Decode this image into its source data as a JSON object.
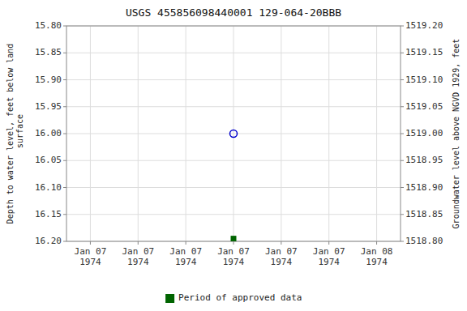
{
  "chart_data": {
    "type": "scatter",
    "title": "USGS 455856098440001 129-064-20BBB",
    "y_label": "Depth to water level, feet below land\n surface",
    "y2_label": "Groundwater level above NGVD 1929, feet",
    "categories": [
      "Jan 07\n1974",
      "Jan 07\n1974",
      "Jan 07\n1974",
      "Jan 07\n1974",
      "Jan 07\n1974",
      "Jan 07\n1974",
      "Jan 08\n1974"
    ],
    "series": [
      {
        "color": "#0000cc",
        "marker": "open-circle",
        "values": [
          null,
          null,
          null,
          16.0,
          null,
          null,
          null
        ]
      },
      {
        "name": "Period of approved data",
        "color": "#006400",
        "marker": "square",
        "values": [
          null,
          null,
          null,
          16.195,
          null,
          null,
          null
        ]
      }
    ],
    "ylim": [
      16.2,
      15.8
    ],
    "yticks": [
      {
        "value": 15.8,
        "label": "15.80"
      },
      {
        "value": 15.85,
        "label": "15.85"
      },
      {
        "value": 15.9,
        "label": "15.90"
      },
      {
        "value": 15.95,
        "label": "15.95"
      },
      {
        "value": 16.0,
        "label": "16.00"
      },
      {
        "value": 16.05,
        "label": "16.05"
      },
      {
        "value": 16.1,
        "label": "16.10"
      },
      {
        "value": 16.15,
        "label": "16.15"
      },
      {
        "value": 16.2,
        "label": "16.20"
      }
    ],
    "y2lim": [
      1518.8,
      1519.2
    ],
    "y2ticks": [
      {
        "value": 1518.8,
        "label": "1518.80"
      },
      {
        "value": 1518.85,
        "label": "1518.85"
      },
      {
        "value": 1518.9,
        "label": "1518.90"
      },
      {
        "value": 1518.95,
        "label": "1518.95"
      },
      {
        "value": 1519.0,
        "label": "1519.00"
      },
      {
        "value": 1519.05,
        "label": "1519.05"
      },
      {
        "value": 1519.1,
        "label": "1519.10"
      },
      {
        "value": 1519.15,
        "label": "1519.15"
      },
      {
        "value": 1519.2,
        "label": "1519.20"
      }
    ],
    "grid": true,
    "legend": "bottom"
  }
}
